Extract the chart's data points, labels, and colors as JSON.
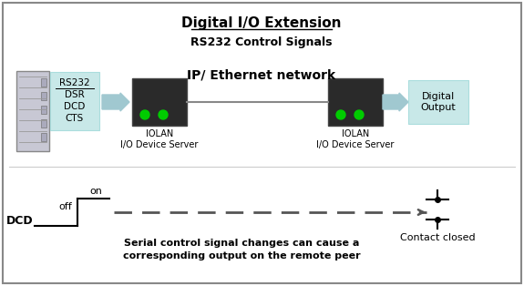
{
  "title": "Digital I/O Extension",
  "subtitle": "RS232 Control Signals",
  "network_label": "IP/ Ethernet network",
  "rs232_labels": [
    "RS232",
    "DSR",
    "DCD",
    "CTS"
  ],
  "iolan_label": "IOLAN\nI/O Device Server",
  "digital_output_label": "Digital\nOutput",
  "dcd_label": "DCD",
  "on_label": "on",
  "off_label": "off",
  "contact_closed_label": "Contact closed",
  "bottom_text_line1": "Serial control signal changes can cause a",
  "bottom_text_line2": "corresponding output on the remote peer",
  "bg_color": "#f0f0f0",
  "border_color": "#888888",
  "box_color": "#c8e8e8",
  "arrow_color": "#a0c8d0",
  "dashed_color": "#555555",
  "server_color": "#c8c8d4",
  "device_color": "#2a2a2a",
  "led_color": "#00cc00"
}
